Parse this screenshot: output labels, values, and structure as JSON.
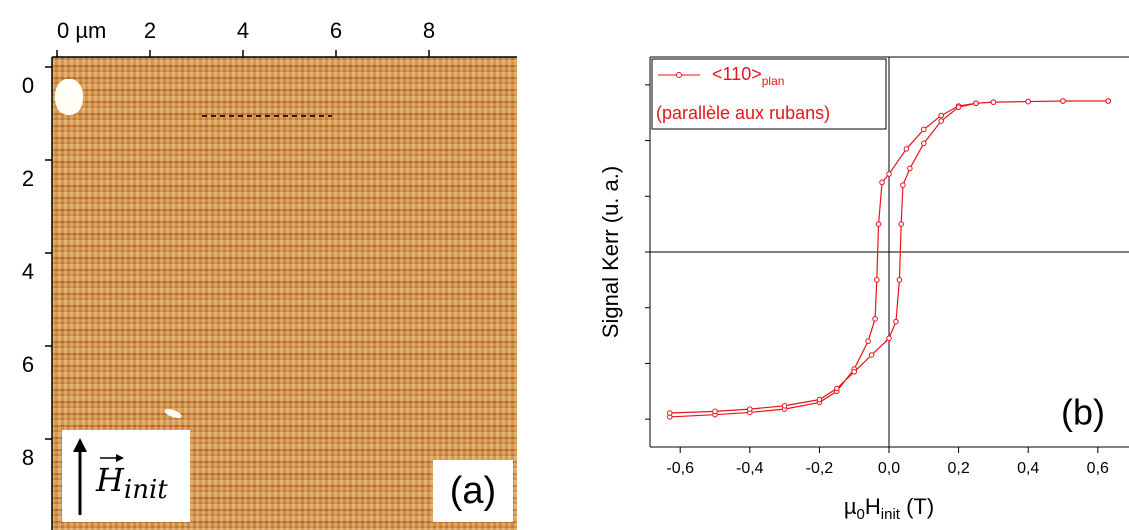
{
  "image_panel": {
    "label": "(a)",
    "field_symbol": "H",
    "field_subscript": "init",
    "xlim": [
      0,
      10
    ],
    "xticks": [
      {
        "value": 0,
        "label": "0 µm"
      },
      2,
      4,
      6,
      8
    ],
    "ylim": [
      0,
      10
    ],
    "yticks": [
      0,
      2,
      4,
      6,
      8
    ]
  },
  "chart_data": {
    "type": "line",
    "panel_label": "(b)",
    "x_label": [
      "µ",
      "0",
      "H",
      "init",
      " (T)"
    ],
    "y_label": "Signal Kerr (u. a.)",
    "xlim": [
      -0.69,
      0.64
    ],
    "xticks": [
      {
        "value": -0.6,
        "label": "-0,6"
      },
      {
        "value": -0.4,
        "label": "-0,4"
      },
      {
        "value": -0.2,
        "label": "-0,2"
      },
      {
        "value": 0,
        "label": "0,0"
      },
      {
        "value": 0.2,
        "label": "0,2"
      },
      {
        "value": 0.4,
        "label": "0,4"
      },
      {
        "value": 0.6,
        "label": "0,6"
      }
    ],
    "ylim": [
      -3.5,
      3.5
    ],
    "yticks": [
      -3,
      -2,
      -1,
      0,
      1,
      2,
      3
    ],
    "x": [
      0.63,
      0.5,
      0.4,
      0.3,
      0.25,
      0.2,
      0.15,
      0.1,
      0.05,
      0.0,
      -0.02,
      -0.03,
      -0.035,
      -0.04,
      -0.06,
      -0.1,
      -0.15,
      -0.2,
      -0.3,
      -0.4,
      -0.5,
      -0.63,
      -0.63,
      -0.5,
      -0.4,
      -0.3,
      -0.2,
      -0.15,
      -0.1,
      -0.05,
      0.0,
      0.02,
      0.03,
      0.035,
      0.04,
      0.06,
      0.1,
      0.15,
      0.2,
      0.25,
      0.3,
      0.4,
      0.5,
      0.63
    ],
    "series": [
      {
        "name": "<110>",
        "name_subscript": "plan",
        "note": "(parallèle aux rubans)",
        "color": "#e8141b",
        "values": [
          2.71,
          2.71,
          2.7,
          2.69,
          2.67,
          2.62,
          2.45,
          2.2,
          1.85,
          1.4,
          1.25,
          0.5,
          -0.5,
          -1.2,
          -1.6,
          -2.1,
          -2.5,
          -2.7,
          -2.82,
          -2.88,
          -2.92,
          -2.96,
          -2.89,
          -2.86,
          -2.82,
          -2.76,
          -2.65,
          -2.45,
          -2.15,
          -1.85,
          -1.55,
          -1.25,
          -0.5,
          0.5,
          1.2,
          1.5,
          1.95,
          2.35,
          2.6,
          2.67,
          2.69,
          2.7,
          2.71,
          2.71
        ]
      }
    ]
  }
}
